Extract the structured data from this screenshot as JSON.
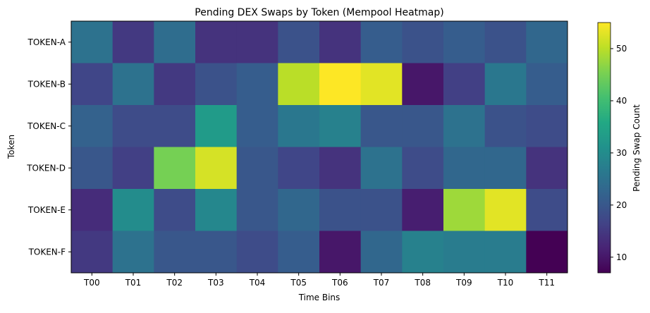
{
  "chart_data": {
    "type": "heatmap",
    "title": "Pending DEX Swaps by Token (Mempool Heatmap)",
    "xlabel": "Time Bins",
    "ylabel": "Token",
    "x_categories": [
      "T00",
      "T01",
      "T02",
      "T03",
      "T04",
      "T05",
      "T06",
      "T07",
      "T08",
      "T09",
      "T10",
      "T11"
    ],
    "y_categories": [
      "TOKEN-A",
      "TOKEN-B",
      "TOKEN-C",
      "TOKEN-D",
      "TOKEN-E",
      "TOKEN-F"
    ],
    "values": [
      [
        25,
        15,
        24,
        14,
        14,
        19,
        14,
        21,
        19,
        21,
        19,
        23
      ],
      [
        17,
        25,
        15,
        19,
        21,
        50,
        55,
        53,
        10,
        16,
        26,
        21
      ],
      [
        22,
        18,
        18,
        33,
        21,
        26,
        28,
        20,
        20,
        25,
        19,
        18
      ],
      [
        20,
        16,
        45,
        52,
        20,
        17,
        14,
        25,
        18,
        23,
        23,
        14
      ],
      [
        13,
        30,
        18,
        29,
        20,
        23,
        19,
        19,
        11,
        48,
        53,
        18
      ],
      [
        15,
        25,
        20,
        20,
        18,
        21,
        10,
        23,
        28,
        27,
        27,
        7
      ]
    ],
    "colormap": "viridis",
    "color_range": [
      7,
      55
    ],
    "colorbar": {
      "label": "Pending Swap Count",
      "ticks": [
        10,
        20,
        30,
        40,
        50
      ]
    },
    "grid": false
  }
}
